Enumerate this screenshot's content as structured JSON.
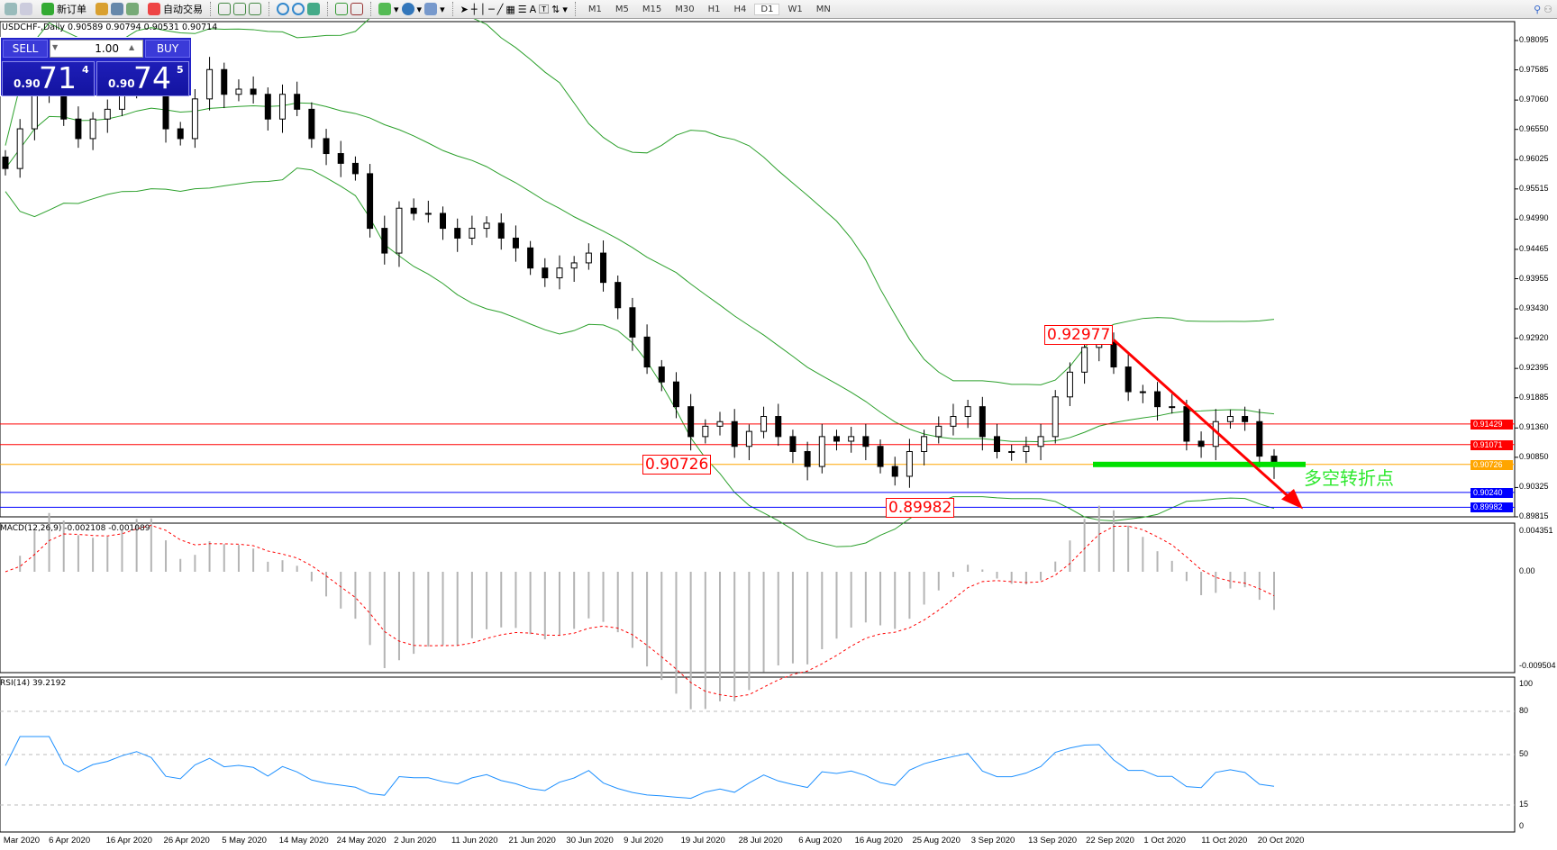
{
  "toolbar": {
    "new_order": "新订单",
    "auto_trade": "自动交易",
    "timeframes": [
      "M1",
      "M5",
      "M15",
      "M30",
      "H1",
      "H4",
      "D1",
      "W1",
      "MN"
    ],
    "active_timeframe": "D1",
    "text_tool": "A"
  },
  "chart_title": "USDCHF-,Daily  0.90589 0.90794 0.90531 0.90714",
  "trade_panel": {
    "sell": "SELL",
    "buy": "BUY",
    "lot": "1.00",
    "bid_prefix": "0.90",
    "bid_big": "71",
    "bid_pip": "4",
    "ask_prefix": "0.90",
    "ask_big": "74",
    "ask_pip": "5"
  },
  "chart_data": {
    "type": "candlestick",
    "symbol": "USDCHF-",
    "timeframe": "Daily",
    "close": [
      0.9587,
      0.9656,
      0.9725,
      0.9742,
      0.9673,
      0.9639,
      0.9673,
      0.969,
      0.9725,
      0.9759,
      0.9742,
      0.9656,
      0.9639,
      0.9708,
      0.9759,
      0.9716,
      0.9725,
      0.9716,
      0.9673,
      0.9716,
      0.969,
      0.9639,
      0.9613,
      0.9596,
      0.9578,
      0.9483,
      0.944,
      0.9518,
      0.9509,
      0.9509,
      0.9483,
      0.9466,
      0.9483,
      0.9492,
      0.9466,
      0.9449,
      0.9414,
      0.9397,
      0.9414,
      0.9423,
      0.944,
      0.9389,
      0.9345,
      0.9294,
      0.9242,
      0.9216,
      0.9173,
      0.9121,
      0.9139,
      0.9147,
      0.9104,
      0.913,
      0.9156,
      0.9121,
      0.9095,
      0.9069,
      0.9121,
      0.9113,
      0.9121,
      0.9104,
      0.9069,
      0.9052,
      0.9095,
      0.9121,
      0.9139,
      0.9156,
      0.9173,
      0.9121,
      0.9095,
      0.9095,
      0.9104,
      0.9121,
      0.919,
      0.9233,
      0.9276,
      0.9285,
      0.9242,
      0.9199,
      0.9199,
      0.9173,
      0.9173,
      0.9113,
      0.9104,
      0.9147,
      0.9156,
      0.9147,
      0.9087,
      0.90714
    ],
    "price_ticks": [
      "0.98095",
      "0.97585",
      "0.97060",
      "0.96550",
      "0.96025",
      "0.95515",
      "0.94990",
      "0.94465",
      "0.93955",
      "0.93430",
      "0.92920",
      "0.92395",
      "0.91885",
      "0.91360",
      "0.90850",
      "0.90325",
      "0.89815"
    ],
    "ylim": [
      0.89815,
      0.98095
    ],
    "date_ticks": [
      "Mar 2020",
      "6 Apr 2020",
      "16 Apr 2020",
      "26 Apr 2020",
      "5 May 2020",
      "14 May 2020",
      "24 May 2020",
      "2 Jun 2020",
      "11 Jun 2020",
      "21 Jun 2020",
      "30 Jun 2020",
      "9 Jul 2020",
      "19 Jul 2020",
      "28 Jul 2020",
      "6 Aug 2020",
      "16 Aug 2020",
      "25 Aug 2020",
      "3 Sep 2020",
      "13 Sep 2020",
      "22 Sep 2020",
      "1 Oct 2020",
      "11 Oct 2020",
      "20 Oct 2020"
    ],
    "indicators": {
      "bollinger_color": "#2ca02c"
    },
    "hlines": [
      {
        "price": 0.91429,
        "label": "0.91429",
        "color": "#ff0000"
      },
      {
        "price": 0.91071,
        "label": "0.91071",
        "color": "#ff0000"
      },
      {
        "price": 0.90726,
        "label": "0.90726",
        "color": "#ffa500"
      },
      {
        "price": 0.9024,
        "label": "0.90240",
        "color": "#0000ff"
      },
      {
        "price": 0.89982,
        "label": "0.89982",
        "color": "#0000ff"
      }
    ],
    "annotations": {
      "high": "0.92977",
      "pivot": "0.90726",
      "low": "0.89982",
      "text": "多空转折点",
      "pivot_line_color": "#00e000",
      "arrow_color": "#ff0000"
    },
    "macd": {
      "label": "MACD(12,26,9) -0.002108 -0.001089",
      "ticks": [
        "0.004351",
        "0.00",
        "-0.009504"
      ],
      "ylim": [
        -0.009504,
        0.004351
      ]
    },
    "rsi": {
      "label": "RSI(14) 39.2192",
      "ticks": [
        "100",
        "80",
        "50",
        "15",
        "0"
      ],
      "levels": [
        80,
        50,
        15
      ]
    }
  }
}
